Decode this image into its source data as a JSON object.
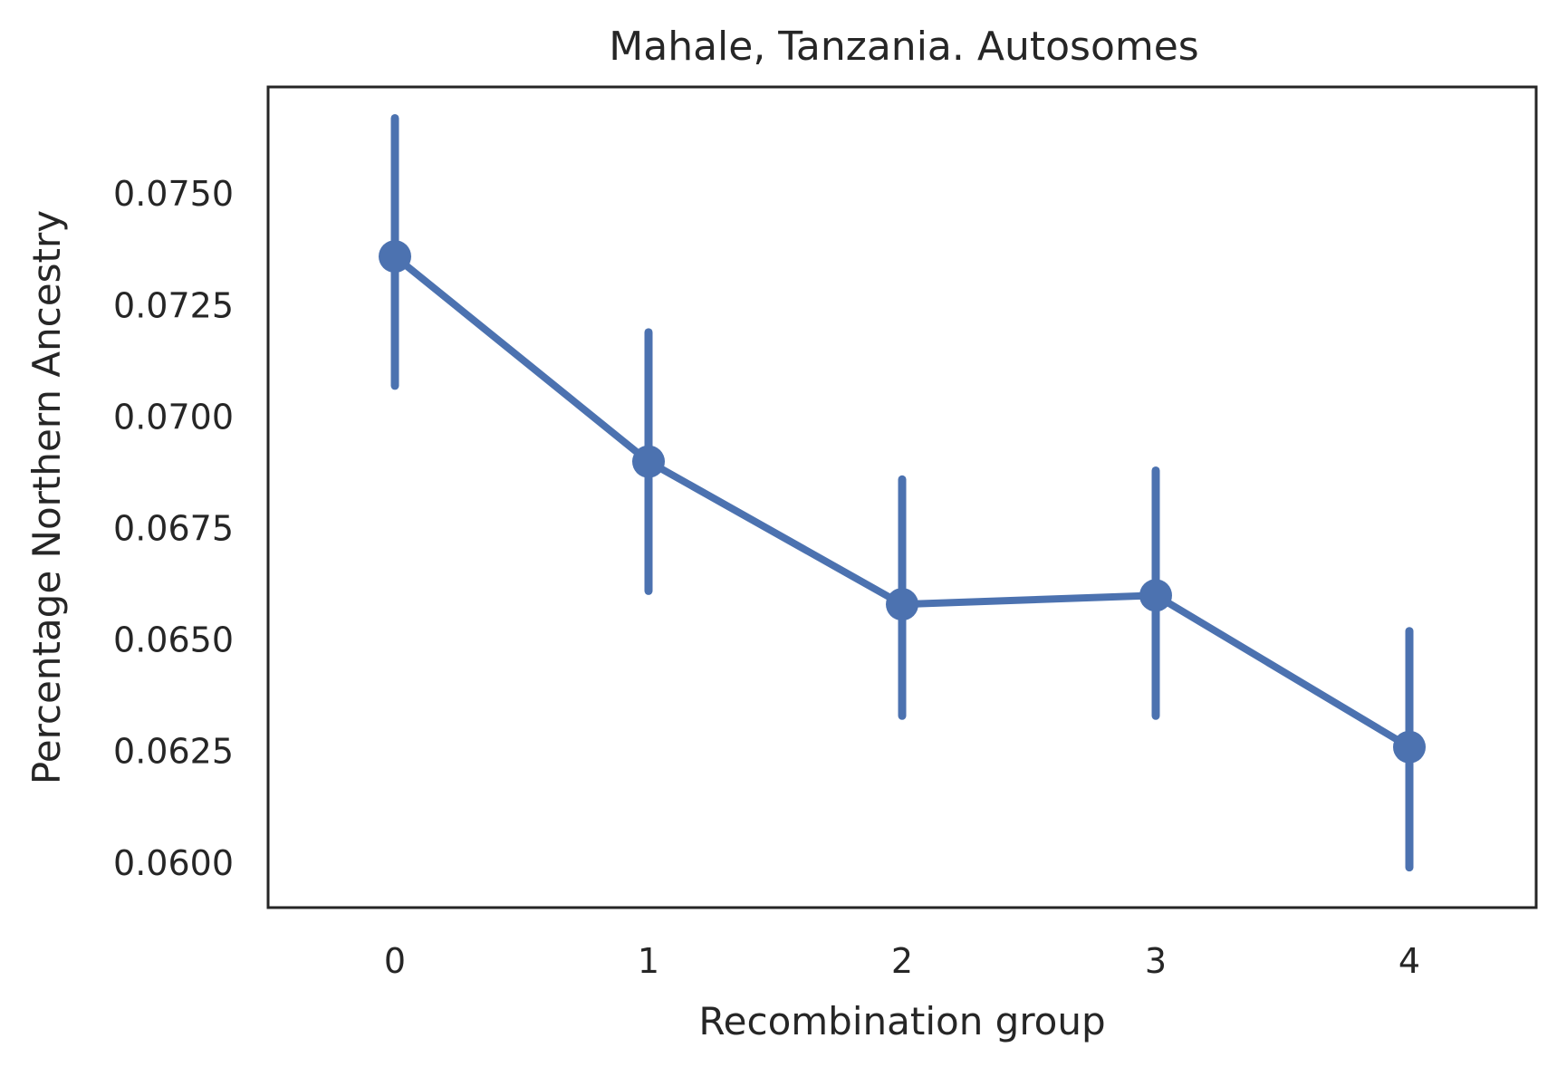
{
  "chart_data": {
    "type": "line",
    "title": "Mahale, Tanzania. Autosomes",
    "xlabel": "Recombination group",
    "ylabel": "Percentage Northern Ancestry",
    "categories": [
      "0",
      "1",
      "2",
      "3",
      "4"
    ],
    "y_ticks": [
      0.06,
      0.0625,
      0.065,
      0.0675,
      0.07,
      0.0725,
      0.075
    ],
    "y_tick_labels": [
      "0.0600",
      "0.0625",
      "0.0650",
      "0.0675",
      "0.0700",
      "0.0725",
      "0.0750"
    ],
    "ylim": [
      0.059,
      0.0774
    ],
    "series": [
      {
        "values": [
          0.0736,
          0.069,
          0.0658,
          0.066,
          0.0626
        ],
        "ci_low": [
          0.0707,
          0.0661,
          0.0633,
          0.0633,
          0.0599
        ],
        "ci_high": [
          0.0767,
          0.0719,
          0.0686,
          0.0688,
          0.0652
        ]
      }
    ],
    "grid": false,
    "colors": {
      "series": "#4c72b0",
      "frame": "#262626",
      "text": "#262626"
    }
  }
}
